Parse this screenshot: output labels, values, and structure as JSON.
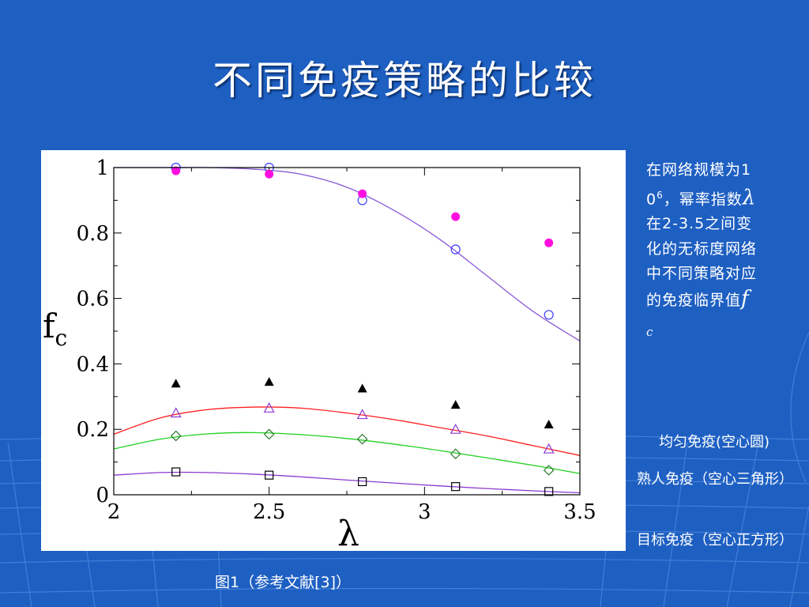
{
  "slide": {
    "title": "不同免疫策略的比较",
    "side_text_before": "在网络规模为10",
    "side_text_sup": "6",
    "side_text_mid": "，幂率指数",
    "side_text_lambda": "λ",
    "side_text_after": " 在2-3.5之间变化的无标度网络中不同策略对应的免疫临界值",
    "side_text_fc": "f",
    "side_text_fc_sub": "c",
    "legend_uniform": "均匀免疫(空心圆)",
    "legend_acquaintance": "熟人免疫（空心三角形）",
    "legend_targeted": "目标免疫（空心正方形）",
    "caption": "图1（参考文献[3]）"
  },
  "colors": {
    "background": "#1e5fc2",
    "circle": "#3a3aff",
    "filled_circle": "#ff10e0",
    "triangle": "#8a3ad0",
    "diamond": "#2a7a2a",
    "square": "#000000",
    "curve_uniform": "#8a5ad8",
    "curve_triangle": "#ff2020",
    "curve_diamond": "#20d020",
    "curve_square": "#8a3ad0"
  },
  "chart_data": {
    "type": "scatter",
    "xlabel": "λ",
    "ylabel": "f",
    "ylabel_sub": "c",
    "xlim": [
      2,
      3.5
    ],
    "ylim": [
      0,
      1
    ],
    "xticks": [
      2,
      2.5,
      3,
      3.5
    ],
    "xtick_labels": [
      "2",
      "2.5",
      "3",
      "3.5"
    ],
    "yticks": [
      0,
      0.2,
      0.4,
      0.6,
      0.8,
      1
    ],
    "ytick_labels": [
      "0",
      "0.2",
      "0.4",
      "0.6",
      "0.8",
      "1"
    ],
    "series": [
      {
        "marker": "open-circle",
        "x": [
          2.2,
          2.5,
          2.8,
          3.1,
          3.4
        ],
        "y": [
          1.0,
          1.0,
          0.9,
          0.75,
          0.55
        ]
      },
      {
        "marker": "filled-circle",
        "x": [
          2.2,
          2.5,
          2.8,
          3.1,
          3.4
        ],
        "y": [
          0.99,
          0.98,
          0.92,
          0.85,
          0.77
        ]
      },
      {
        "marker": "filled-triangle",
        "x": [
          2.2,
          2.5,
          2.8,
          3.1,
          3.4
        ],
        "y": [
          0.34,
          0.345,
          0.325,
          0.275,
          0.215
        ]
      },
      {
        "marker": "open-triangle",
        "x": [
          2.2,
          2.5,
          2.8,
          3.1,
          3.4
        ],
        "y": [
          0.25,
          0.265,
          0.245,
          0.2,
          0.14
        ]
      },
      {
        "marker": "open-diamond",
        "x": [
          2.2,
          2.5,
          2.8,
          3.1,
          3.4
        ],
        "y": [
          0.18,
          0.185,
          0.17,
          0.125,
          0.075
        ]
      },
      {
        "marker": "open-square",
        "x": [
          2.2,
          2.5,
          2.8,
          3.1,
          3.4
        ],
        "y": [
          0.07,
          0.06,
          0.04,
          0.025,
          0.01
        ]
      }
    ],
    "curves": [
      {
        "color_key": "curve_uniform",
        "x": [
          2.0,
          2.15,
          2.3,
          2.45,
          2.6,
          2.75,
          2.9,
          3.05,
          3.2,
          3.35,
          3.5
        ],
        "y": [
          1.0,
          1.0,
          1.0,
          0.995,
          0.98,
          0.94,
          0.87,
          0.78,
          0.67,
          0.56,
          0.47
        ]
      },
      {
        "color_key": "curve_triangle",
        "x": [
          2.0,
          2.15,
          2.3,
          2.45,
          2.6,
          2.75,
          2.9,
          3.05,
          3.2,
          3.35,
          3.5
        ],
        "y": [
          0.185,
          0.235,
          0.26,
          0.268,
          0.265,
          0.25,
          0.23,
          0.205,
          0.18,
          0.15,
          0.12
        ]
      },
      {
        "color_key": "curve_diamond",
        "x": [
          2.0,
          2.15,
          2.3,
          2.45,
          2.6,
          2.75,
          2.9,
          3.05,
          3.2,
          3.35,
          3.5
        ],
        "y": [
          0.14,
          0.17,
          0.186,
          0.19,
          0.184,
          0.172,
          0.155,
          0.135,
          0.113,
          0.09,
          0.065
        ]
      },
      {
        "color_key": "curve_square",
        "x": [
          2.0,
          2.15,
          2.3,
          2.45,
          2.6,
          2.75,
          2.9,
          3.05,
          3.2,
          3.35,
          3.5
        ],
        "y": [
          0.06,
          0.068,
          0.068,
          0.063,
          0.055,
          0.045,
          0.036,
          0.027,
          0.019,
          0.012,
          0.006
        ]
      }
    ]
  }
}
